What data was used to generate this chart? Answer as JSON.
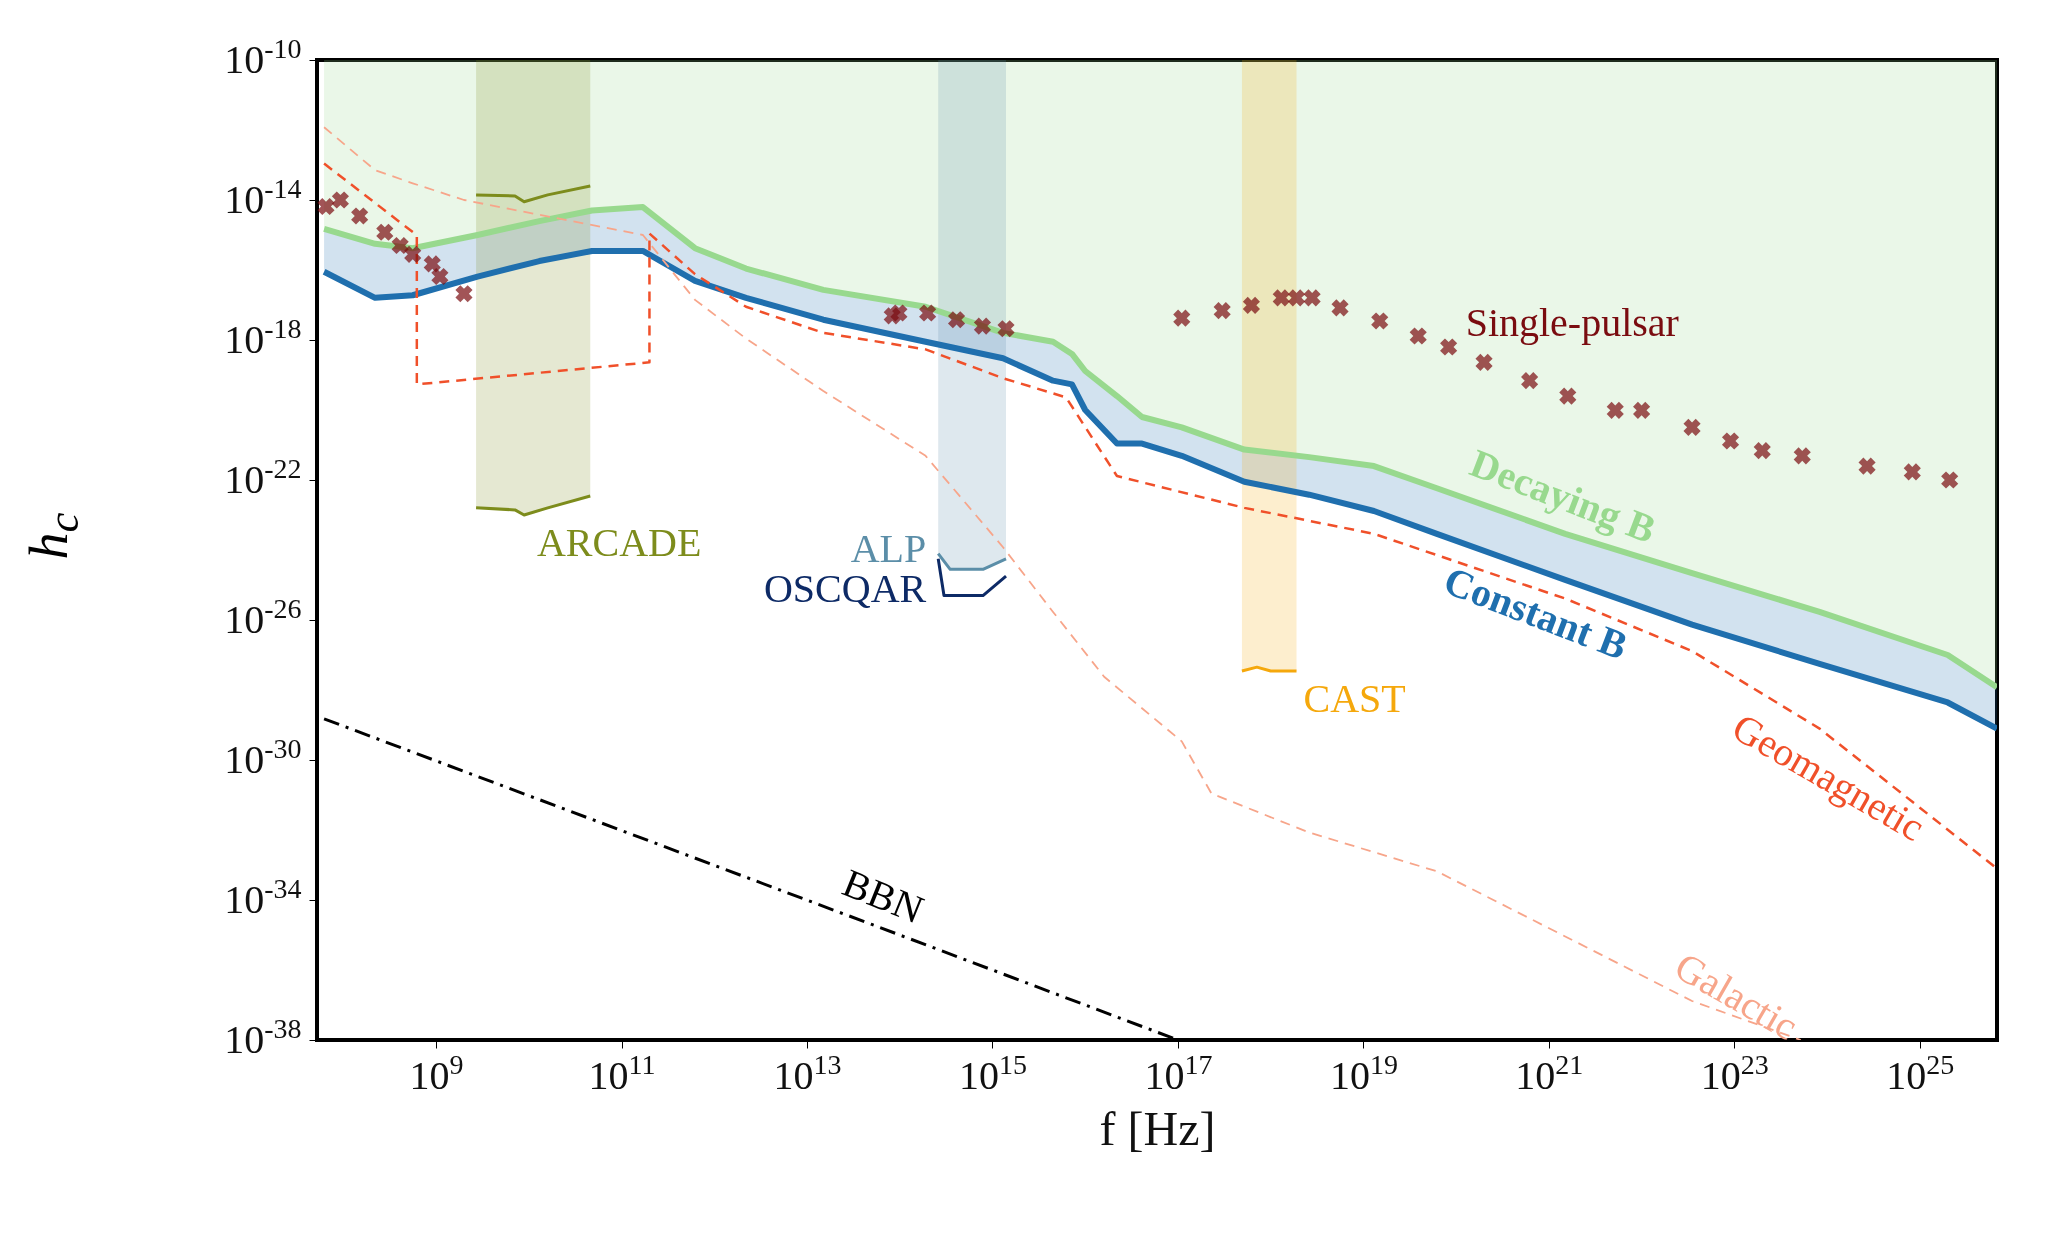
{
  "chart_data": {
    "type": "line",
    "xlabel": "f [Hz]",
    "ylabel": "h$_{c}$",
    "log": "xy",
    "xlim": [
      52000000.0,
      6.8e+25
    ],
    "ylim": [
      1e-38,
      1e-10
    ],
    "xticks": [
      {
        "value": 1000000000.0,
        "label": "10$^{9}$"
      },
      {
        "value": 100000000000.0,
        "label": "10$^{11}$"
      },
      {
        "value": 10000000000000.0,
        "label": "10$^{13}$"
      },
      {
        "value": 1000000000000000.0,
        "label": "10$^{15}$"
      },
      {
        "value": 1e+17,
        "label": "10$^{17}$"
      },
      {
        "value": 1e+19,
        "label": "10$^{19}$"
      },
      {
        "value": 1e+21,
        "label": "10$^{21}$"
      },
      {
        "value": 1e+23,
        "label": "10$^{23}$"
      },
      {
        "value": 1e+25,
        "label": "10$^{25}$"
      }
    ],
    "yticks": [
      {
        "value": 1e-10,
        "label": "10$^{-10}$"
      },
      {
        "value": 1e-14,
        "label": "10$^{-14}$"
      },
      {
        "value": 1e-18,
        "label": "10$^{-18}$"
      },
      {
        "value": 1e-22,
        "label": "10$^{-22}$"
      },
      {
        "value": 1e-26,
        "label": "10$^{-26}$"
      },
      {
        "value": 1e-30,
        "label": "10$^{-30}$"
      },
      {
        "value": 1e-34,
        "label": "10$^{-34}$"
      },
      {
        "value": 1e-38,
        "label": "10$^{-38}$"
      }
    ],
    "x": [
      62000000.0,
      220000000.0,
      560000000.0,
      2800000000.0,
      13000000000.0,
      48000000000.0,
      170000000000.0,
      620000000000.0,
      2200000000000.0,
      15000000000000.0,
      190000000000000.0,
      1300000000000000.0,
      4500000000000000.0,
      7200000000000000.0,
      1e+16,
      2.2e+16,
      4.1e+16,
      1.1e+17,
      5.2e+17,
      2.6e+18,
      1.3e+19,
      6.2e+19,
      1.5e+21,
      3.5e+22,
      8.3e+23,
      2e+25,
      6.8e+25
    ],
    "series": [
      {
        "name": "Constant B⃗",
        "color": "#1f6fae",
        "line_style": "solid",
        "values": [
          8.9e-17,
          1.6e-17,
          1.9e-17,
          6.5e-17,
          1.8e-16,
          3.5e-16,
          3.5e-16,
          4.9e-17,
          1.6e-17,
          3.8e-18,
          8.9e-19,
          3e-19,
          6.9e-20,
          5.4e-20,
          1e-20,
          1.1e-21,
          1.1e-21,
          4.9e-22,
          8.9e-23,
          3.8e-23,
          1.3e-23,
          2.9e-24,
          1.4e-25,
          7.4e-27,
          5.6e-28,
          4.4e-29,
          7.9e-30
        ],
        "lower": [
          8.9e-17,
          1.6e-17,
          1.9e-17,
          6.5e-17,
          1.8e-16,
          3.5e-16,
          3.5e-16,
          4.9e-17,
          1.6e-17,
          3.8e-18,
          8.9e-19,
          3e-19,
          6.9e-20,
          5.4e-20,
          1e-20,
          1.1e-21,
          1.1e-21,
          4.9e-22,
          8.9e-23,
          3.8e-23,
          1.3e-23,
          2.9e-24,
          1.4e-25,
          7.4e-27,
          5.6e-28,
          4.4e-29,
          7.9e-30
        ],
        "upper": [
          1.5e-15,
          5.6e-16,
          4.2e-16,
          1e-15,
          2.5e-15,
          5e-15,
          6.3e-15,
          4.2e-16,
          1.1e-16,
          2.7e-17,
          8.9e-18,
          1.6e-18,
          8.9e-19,
          4e-19,
          1.3e-19,
          2.5e-20,
          6.3e-21,
          3.2e-21,
          7.4e-22,
          4.5e-22,
          2.5e-22,
          5.8e-23,
          2.9e-24,
          2.2e-25,
          1.7e-26,
          1e-27,
          1.2e-28
        ]
      },
      {
        "name": "Decaying B⃗",
        "color": "#98d98e",
        "line_style": "solid",
        "values": [
          1.5e-15,
          5.6e-16,
          4.2e-16,
          1e-15,
          2.5e-15,
          5e-15,
          6.3e-15,
          4.2e-16,
          1.1e-16,
          2.7e-17,
          8.9e-18,
          1.6e-18,
          8.9e-19,
          4e-19,
          1.3e-19,
          2.5e-20,
          6.3e-21,
          3.2e-21,
          7.4e-22,
          4.5e-22,
          2.5e-22,
          5.8e-23,
          2.9e-24,
          2.2e-25,
          1.7e-26,
          1e-27,
          1.2e-28
        ],
        "lower": [
          1.5e-15,
          5.6e-16,
          4.2e-16,
          1e-15,
          2.5e-15,
          5e-15,
          6.3e-15,
          4.2e-16,
          1.1e-16,
          2.7e-17,
          8.9e-18,
          1.6e-18,
          8.9e-19,
          4e-19,
          1.3e-19,
          2.5e-20,
          6.3e-21,
          3.2e-21,
          7.4e-22,
          4.5e-22,
          2.5e-22,
          5.8e-23,
          2.9e-24,
          2.2e-25,
          1.7e-26,
          1e-27,
          1.2e-28
        ],
        "upper": [
          1e-10,
          1e-10,
          1e-10,
          1e-10,
          1e-10,
          1e-10,
          1e-10,
          1e-10,
          1e-10,
          1e-10,
          1e-10,
          1e-10,
          1e-10,
          1e-10,
          1e-10,
          1e-10,
          1e-10,
          1e-10,
          1e-10,
          1e-10,
          1e-10,
          1e-10,
          1e-10,
          1e-10,
          1e-10,
          1e-10,
          1e-10
        ]
      },
      {
        "name": "Geomagnetic",
        "color": "#f0502a",
        "line_style": "dashed",
        "x": [
          62000000.0,
          410000000.0,
          620000000.0,
          620000000.0,
          200000000000.0,
          200000000000.0,
          620000000000.0,
          2200000000000.0,
          15000000000000.0,
          190000000000000.0,
          1300000000000000.0,
          6200000000000000.0,
          2.2e+16,
          5.2e+17,
          1.3e+19,
          1.5e+21,
          3.5e+22,
          8.3e+23,
          6.8e+25
        ],
        "values": [
          1.1e-13,
          2.3e-15,
          1e-15,
          5.4e-20,
          2.3e-19,
          1.1e-15,
          7.6e-17,
          8.9e-18,
          1.6e-18,
          5.4e-19,
          8.1e-20,
          2.3e-20,
          1.3e-22,
          1.6e-23,
          2.9e-24,
          4.1e-26,
          1.3e-27,
          7.9e-30,
          7.9e-34
        ]
      },
      {
        "name": "Galactic",
        "color": "#f7a58a",
        "line_style": "dashed",
        "x": [
          62000000.0,
          220000000.0,
          560000000.0,
          2000000000.0,
          170000000000.0,
          620000000000.0,
          2200000000000.0,
          15000000000000.0,
          190000000000000.0,
          1300000000000000.0,
          4500000000000000.0,
          1.6e+16,
          1.1e+17,
          2.3e+17,
          2.6e+18,
          6.2e+19,
          1.5e+21,
          3.5e+22,
          5.2e+23
        ],
        "values": [
          1.2e-12,
          7.1e-14,
          3e-14,
          1e-14,
          1e-15,
          1.4e-17,
          1.1e-18,
          3.5e-20,
          4.9e-22,
          1.2e-24,
          1.7e-26,
          2.4e-28,
          3.4e-30,
          1.1e-31,
          8.5e-33,
          6.6e-34,
          9.1e-36,
          1.3e-37,
          1e-38
        ]
      },
      {
        "name": "BBN",
        "color": "#000000",
        "line_style": "dashdot",
        "x": [
          62000000.0,
          50000000000000.0,
          1e+17
        ],
        "values": [
          1.5e-29,
          2e-35,
          1e-38
        ]
      },
      {
        "name": "Single-pulsar",
        "type": "scatter",
        "marker": "cross",
        "color": "#7a0c10",
        "x": [
          65000000.0,
          93000000.0,
          150000000.0,
          280000000.0,
          410000000.0,
          560000000.0,
          910000000.0,
          1100000000.0,
          2000000000.0,
          83000000000000.0,
          98000000000000.0,
          200000000000000.0,
          410000000000000.0,
          780000000000000.0,
          1400000000000000.0,
          1.1e+17,
          3e+17,
          6.2e+17,
          1.3e+18,
          1.9e+18,
          2.8e+18,
          5.6e+18,
          1.5e+19,
          3.9e+19,
          8.3e+19,
          2e+20,
          6.2e+20,
          1.6e+21,
          5.2e+21,
          1e+22,
          3.5e+22,
          9.1e+22,
          2e+23,
          5.4e+23,
          2.7e+24,
          8.3e+24,
          2.1e+25
        ],
        "values": [
          6.5e-15,
          1e-14,
          3.5e-15,
          1.2e-15,
          5e-16,
          2.8e-16,
          1.5e-16,
          6.5e-17,
          2.1e-17,
          4.9e-18,
          5.9e-18,
          5.9e-18,
          3.8e-18,
          2.5e-18,
          2.1e-18,
          4.2e-18,
          6.9e-18,
          9.8e-18,
          1.6e-17,
          1.6e-17,
          1.6e-17,
          8.3e-18,
          3.5e-18,
          1.3e-18,
          6.3e-19,
          2.3e-19,
          6.9e-20,
          2.5e-20,
          9.8e-21,
          9.8e-21,
          3.2e-21,
          1.3e-21,
          6.9e-22,
          4.9e-22,
          2.5e-22,
          1.7e-22,
          1e-22
        ]
      },
      {
        "name": "ARCADE",
        "color": "#7d8c1c",
        "line_style": "solid",
        "x": [
          2700000000.0,
          7100000000.0,
          8900000000.0,
          16000000000.0,
          46000000000.0
        ],
        "values": [
          1.6e-23,
          1.4e-23,
          1e-23,
          1.6e-23,
          3.5e-23
        ],
        "lower": [
          1.6e-23,
          1.4e-23,
          1e-23,
          1.6e-23,
          3.5e-23
        ],
        "upper": [
          1e-10,
          1e-10,
          1e-10,
          1e-10,
          1e-10
        ]
      },
      {
        "color": "#7d8c1c",
        "line_style": "solid",
        "x": [
          2700000000.0,
          7100000000.0,
          8900000000.0,
          16000000000.0,
          46000000000.0
        ],
        "values": [
          1.4e-14,
          1.3e-14,
          8.9e-15,
          1.4e-14,
          2.5e-14
        ]
      },
      {
        "name": "ALP",
        "color": "#5b8ea8",
        "line_style": "solid",
        "x": [
          260000000000000.0,
          350000000000000.0,
          790000000000000.0,
          1400000000000000.0
        ],
        "values": [
          7.9e-25,
          2.8e-25,
          2.8e-25,
          5.6e-25
        ],
        "lower": [
          7.9e-25,
          2.8e-25,
          2.8e-25,
          5.6e-25
        ],
        "upper": [
          1e-10,
          1e-10,
          1e-10,
          1e-10
        ]
      },
      {
        "name": "OSCQAR",
        "color": "#0d2a66",
        "line_style": "solid",
        "x": [
          260000000000000.0,
          300000000000000.0,
          790000000000000.0,
          1400000000000000.0
        ],
        "values": [
          5.6e-25,
          5e-26,
          5e-26,
          1.8e-25
        ]
      },
      {
        "name": "CAST",
        "color": "#f5a80c",
        "line_style": "solid",
        "x": [
          4.9e+17,
          7.1e+17,
          1e+18,
          1.9e+18
        ],
        "values": [
          3.5e-28,
          4.5e-28,
          3.5e-28,
          3.5e-28
        ],
        "lower": [
          3.5e-28,
          4.5e-28,
          3.5e-28,
          3.5e-28
        ],
        "upper": [
          1e-10,
          1e-10,
          1e-10,
          1e-10
        ]
      }
    ]
  }
}
